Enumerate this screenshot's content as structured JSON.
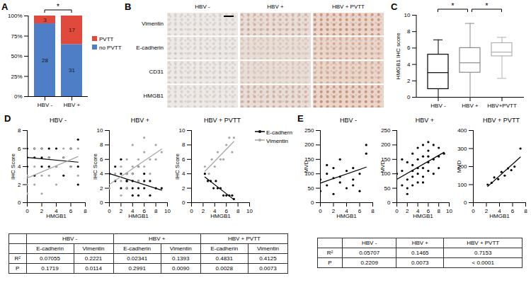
{
  "chart_data": [
    {
      "panel": "A",
      "type": "bar",
      "stacked": true,
      "data_labels": true,
      "legend": "right",
      "categories": [
        "HBV -",
        "HBV +"
      ],
      "series": [
        {
          "name": "no PVTT",
          "color": "#4d7ec6",
          "values": [
            90.3,
            64.6
          ],
          "counts": [
            28,
            31
          ]
        },
        {
          "name": "PVTT",
          "color": "#e04a3c",
          "values": [
            9.7,
            35.4
          ],
          "counts": [
            3,
            17
          ]
        }
      ],
      "ylim": [
        0,
        100
      ],
      "yticks": [
        {
          "value": 0,
          "label": "0%"
        },
        {
          "value": 25,
          "label": "25%"
        },
        {
          "value": 50,
          "label": "50%"
        },
        {
          "value": 75,
          "label": "75%"
        },
        {
          "value": 100,
          "label": "100%"
        }
      ],
      "annotations": [
        {
          "text": "*",
          "between": [
            "HBV -",
            "HBV +"
          ]
        }
      ]
    },
    {
      "panel": "C",
      "type": "box",
      "categories": [
        "HBV -",
        "HBV +",
        "HBV+PVTT"
      ],
      "colors": [
        "#000000",
        "#8c8c8c",
        "#b0b0b0"
      ],
      "whisker_low": [
        0,
        0,
        2.3
      ],
      "q1": [
        1,
        3,
        5
      ],
      "median": [
        3,
        4.2,
        5.5
      ],
      "q3": [
        5.2,
        6,
        6.6
      ],
      "whisker_high": [
        7,
        9,
        7.3
      ],
      "ylabel": "HMGB1 IHC score",
      "ylim": [
        0,
        10
      ],
      "yticks": [
        0,
        2,
        4,
        6,
        8,
        10
      ],
      "annotations": [
        {
          "text": "*",
          "between": [
            "HBV -",
            "HBV +"
          ]
        },
        {
          "text": "*",
          "between": [
            "HBV +",
            "HBV+PVTT"
          ]
        }
      ]
    },
    {
      "panel": "D",
      "type": "scatter",
      "title": "HBV -",
      "xlabel": "HMGB1",
      "ylabel": "IHC Score",
      "xlim": [
        0,
        8
      ],
      "xticks": [
        0,
        2,
        4,
        6,
        8
      ],
      "ylim": [
        0,
        8
      ],
      "yticks": [
        0,
        2,
        4,
        6,
        8
      ],
      "series": [
        {
          "name": "E-cadhern",
          "color": "#000000",
          "marker": "circle",
          "x": [
            0,
            0,
            0,
            1,
            1,
            1,
            2,
            2,
            2,
            3,
            3,
            3,
            4,
            4,
            5,
            5,
            6,
            6,
            7,
            7,
            7
          ],
          "values": [
            6,
            5,
            4,
            6,
            5,
            3,
            6,
            5,
            4,
            6,
            4,
            5,
            6,
            4,
            5,
            3,
            6,
            4,
            7,
            2,
            4
          ]
        },
        {
          "name": "Vimentin",
          "color": "#a6a6a6",
          "marker": "circle",
          "x": [
            0,
            0,
            0,
            1,
            1,
            2,
            2,
            3,
            3,
            4,
            4,
            5,
            5,
            6,
            6,
            7,
            7,
            1,
            2
          ],
          "values": [
            1,
            2,
            3,
            2,
            4,
            3,
            1,
            3,
            5,
            4,
            2,
            5,
            6,
            4,
            6,
            6,
            3,
            6,
            6
          ]
        }
      ]
    },
    {
      "type": "scatter",
      "title": "HBV +",
      "xlabel": "HMGB1",
      "ylabel": "IHC Score",
      "xlim": [
        0,
        10
      ],
      "xticks": [
        0,
        2,
        4,
        6,
        8,
        10
      ],
      "ylim": [
        0,
        10
      ],
      "yticks": [
        0,
        2,
        4,
        6,
        8,
        10
      ],
      "series": [
        {
          "name": "E-cadhern",
          "color": "#000000",
          "marker": "circle",
          "x": [
            0,
            1,
            1,
            2,
            2,
            3,
            3,
            3,
            4,
            4,
            4,
            5,
            5,
            5,
            6,
            6,
            7,
            7,
            8,
            9,
            2,
            4,
            6,
            3,
            5
          ],
          "values": [
            4,
            3,
            5,
            2,
            4,
            3,
            2,
            4,
            3,
            1,
            4,
            2,
            3,
            5,
            2,
            3,
            1,
            3,
            2,
            2,
            6,
            2,
            4,
            3,
            1
          ]
        },
        {
          "name": "Vimentin",
          "color": "#a6a6a6",
          "marker": "circle",
          "x": [
            0,
            1,
            2,
            2,
            3,
            3,
            4,
            4,
            4,
            5,
            5,
            6,
            6,
            7,
            7,
            8,
            8,
            9,
            3,
            5,
            2,
            6
          ],
          "values": [
            2,
            4,
            3,
            5,
            4,
            6,
            4,
            5,
            8,
            5,
            6,
            5,
            7,
            6,
            4,
            6,
            8,
            7,
            2,
            3,
            1,
            9
          ]
        }
      ]
    },
    {
      "type": "scatter",
      "title": "HBV + PVTT",
      "xlabel": "HMGB1",
      "ylabel": "IHC Score",
      "legend": "right",
      "xlim": [
        0,
        10
      ],
      "xticks": [
        0,
        2,
        4,
        6,
        8,
        10
      ],
      "ylim": [
        0,
        10
      ],
      "yticks": [
        0,
        2,
        4,
        6,
        8,
        10
      ],
      "series": [
        {
          "name": "E-cadhern",
          "color": "#000000",
          "marker": "circle",
          "x": [
            2.3,
            2.8,
            3.3,
            3.8,
            4.2,
            4.5,
            5,
            5.5,
            6,
            6.5,
            7,
            7.3
          ],
          "values": [
            4,
            3,
            3,
            2,
            3,
            2,
            2,
            1,
            1,
            1,
            1,
            0.5
          ]
        },
        {
          "name": "Vimentin",
          "color": "#a6a6a6",
          "marker": "circle",
          "x": [
            2.3,
            3,
            3.5,
            4,
            4.5,
            5,
            5.5,
            6,
            6.5,
            7,
            7.3
          ],
          "values": [
            5,
            4,
            6,
            5,
            7,
            6,
            6,
            8,
            9,
            7,
            9
          ]
        }
      ]
    },
    {
      "panel": "E",
      "type": "scatter",
      "title": "HBV -",
      "xlabel": "HMGB1",
      "ylabel": "MVD",
      "xlim": [
        0,
        8
      ],
      "xticks": [
        0,
        2,
        4,
        6,
        8
      ],
      "ylim": [
        0,
        250
      ],
      "yticks": [
        0,
        50,
        100,
        150,
        200,
        250
      ],
      "series": [
        {
          "color": "#000000",
          "marker": "circle",
          "x": [
            0,
            0,
            1,
            1,
            2,
            2,
            3,
            3,
            3,
            4,
            4,
            5,
            5,
            6,
            6,
            7,
            7,
            2,
            1,
            5
          ],
          "values": [
            80,
            40,
            60,
            100,
            30,
            120,
            70,
            150,
            90,
            50,
            110,
            80,
            60,
            100,
            40,
            200,
            170,
            85,
            130,
            120
          ]
        }
      ]
    },
    {
      "type": "scatter",
      "title": "HBV +",
      "xlabel": "HMGB1",
      "ylabel": "MVD",
      "xlim": [
        0,
        10
      ],
      "xticks": [
        0,
        2,
        4,
        6,
        8,
        10
      ],
      "ylim": [
        0,
        250
      ],
      "yticks": [
        0,
        50,
        100,
        150,
        200,
        250
      ],
      "series": [
        {
          "color": "#000000",
          "marker": "circle",
          "x": [
            0,
            1,
            1,
            2,
            2,
            2,
            3,
            3,
            3,
            4,
            4,
            4,
            4,
            5,
            5,
            5,
            6,
            6,
            6,
            7,
            7,
            8,
            8,
            9,
            3,
            5,
            2,
            6,
            4,
            7,
            1,
            5,
            3,
            6,
            8
          ],
          "values": [
            100,
            60,
            110,
            80,
            140,
            50,
            90,
            130,
            170,
            100,
            150,
            70,
            190,
            120,
            160,
            200,
            110,
            180,
            140,
            150,
            200,
            160,
            120,
            170,
            60,
            90,
            30,
            210,
            120,
            100,
            150,
            70,
            110,
            160,
            190
          ]
        }
      ]
    },
    {
      "type": "scatter",
      "title": "HBV + PVTT",
      "xlabel": "HMGB1",
      "ylabel": "MVD",
      "xlim": [
        0,
        8
      ],
      "xticks": [
        0,
        2,
        4,
        6,
        8
      ],
      "ylim": [
        0,
        400
      ],
      "yticks": [
        0,
        100,
        200,
        300,
        400
      ],
      "series": [
        {
          "color": "#000000",
          "marker": "circle",
          "x": [
            2.2,
            2.8,
            3.2,
            3.8,
            4.3,
            4.8,
            5.3,
            5.8,
            6.3,
            7.2
          ],
          "values": [
            100,
            110,
            140,
            130,
            170,
            150,
            190,
            180,
            200,
            300
          ]
        }
      ]
    }
  ],
  "panel_b": {
    "panel": "B",
    "columns": [
      "HBV -",
      "HBV +",
      "HBV + PVTT"
    ],
    "rows": [
      "Vimentin",
      "E-cadherin",
      "CD31",
      "HMGB1"
    ]
  },
  "tables": [
    {
      "columns": [
        "HBV -",
        "HBV +",
        "HBV + PVTT"
      ],
      "subcolumns": [
        "E-cadherin",
        "Vimentin"
      ],
      "rows": [
        {
          "label": "R²",
          "cells": [
            "0.07055",
            "0.2221",
            "0.02341",
            "0.1393",
            "0.4831",
            "0.4125"
          ]
        },
        {
          "label": "P",
          "cells": [
            "0.1719",
            "0.0114",
            "0.2991",
            "0.0090",
            "0.0028",
            "0.0073"
          ]
        }
      ]
    },
    {
      "columns": [
        "HBV -",
        "HBV +",
        "HBV + PVTT"
      ],
      "rows": [
        {
          "label": "R²",
          "cells": [
            "0.05707",
            "0.1465",
            "0.7153"
          ]
        },
        {
          "label": "P",
          "cells": [
            "0.2209",
            "0.0073",
            "< 0.0001"
          ]
        }
      ]
    }
  ]
}
